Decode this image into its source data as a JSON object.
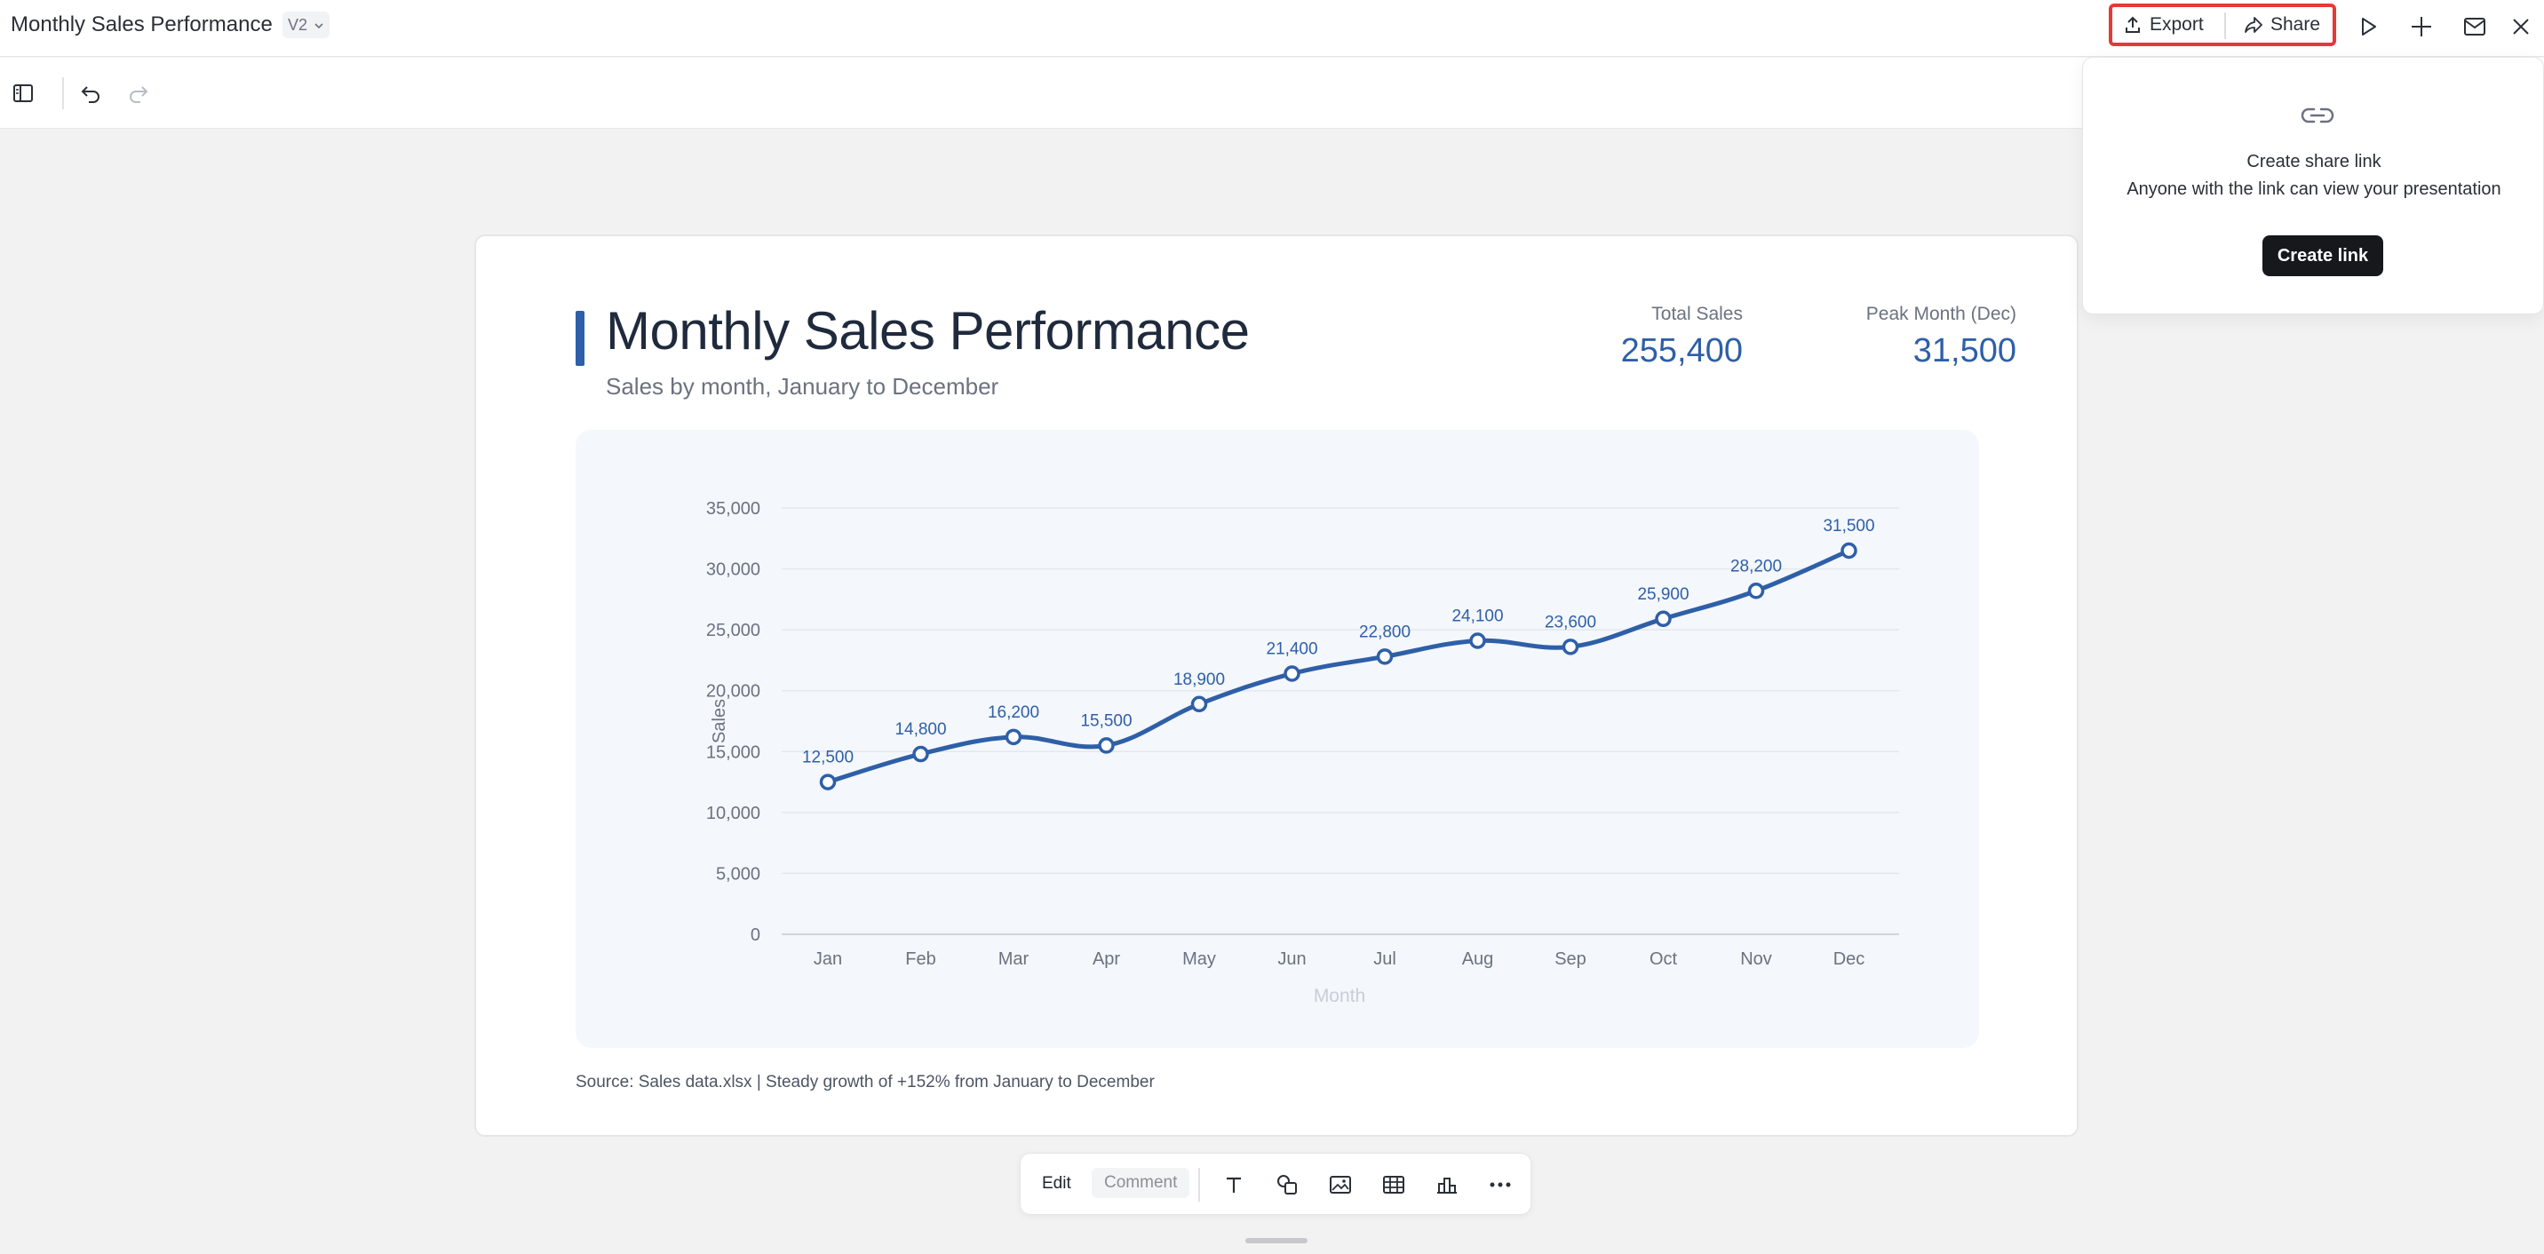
{
  "app": {
    "doc_title": "Monthly Sales Performance",
    "version": "V2"
  },
  "topbar": {
    "export_label": "Export",
    "share_label": "Share",
    "icons": [
      "export-icon",
      "share-icon",
      "play-icon",
      "sparkle-icon",
      "mail-icon",
      "close-icon"
    ],
    "highlight_color": "#e53935"
  },
  "toolbar2": {
    "icons": [
      "sidebar-toggle-icon",
      "undo-icon",
      "redo-icon"
    ]
  },
  "slide": {
    "title": "Monthly Sales Performance",
    "subtitle": "Sales by month, January to December",
    "kpis": [
      {
        "label": "Total Sales",
        "value": "255,400"
      },
      {
        "label": "Peak Month (Dec)",
        "value": "31,500"
      }
    ],
    "source": "Source: Sales data.xlsx | Steady growth of +152% from January to December",
    "accent_color": "#2e5fa8"
  },
  "chart_data": {
    "type": "line",
    "title": "",
    "xlabel": "Month",
    "ylabel": "Sales",
    "categories": [
      "Jan",
      "Feb",
      "Mar",
      "Apr",
      "May",
      "Jun",
      "Jul",
      "Aug",
      "Sep",
      "Oct",
      "Nov",
      "Dec"
    ],
    "series": [
      {
        "values": [
          12500,
          14800,
          16200,
          15500,
          18900,
          21400,
          22800,
          24100,
          23600,
          25900,
          28200,
          31500
        ]
      }
    ],
    "data_labels": [
      "12,500",
      "14,800",
      "16,200",
      "15,500",
      "18,900",
      "21,400",
      "22,800",
      "24,100",
      "23,600",
      "25,900",
      "28,200",
      "31,500"
    ],
    "ylim": [
      0,
      35000
    ],
    "yticks": [
      0,
      5000,
      10000,
      15000,
      20000,
      25000,
      30000,
      35000
    ],
    "ytick_labels": [
      "0",
      "5,000",
      "10,000",
      "15,000",
      "20,000",
      "25,000",
      "30,000",
      "35,000"
    ],
    "grid": true,
    "line_color": "#2e5fa8"
  },
  "share_popover": {
    "title": "Create share link",
    "description": "Anyone with the link can view your presentation",
    "button_label": "Create link"
  },
  "bottom_toolbar": {
    "edit_label": "Edit",
    "comment_label": "Comment",
    "icons": [
      "text-icon",
      "shapes-icon",
      "image-icon",
      "table-icon",
      "chart-icon",
      "more-icon"
    ]
  }
}
